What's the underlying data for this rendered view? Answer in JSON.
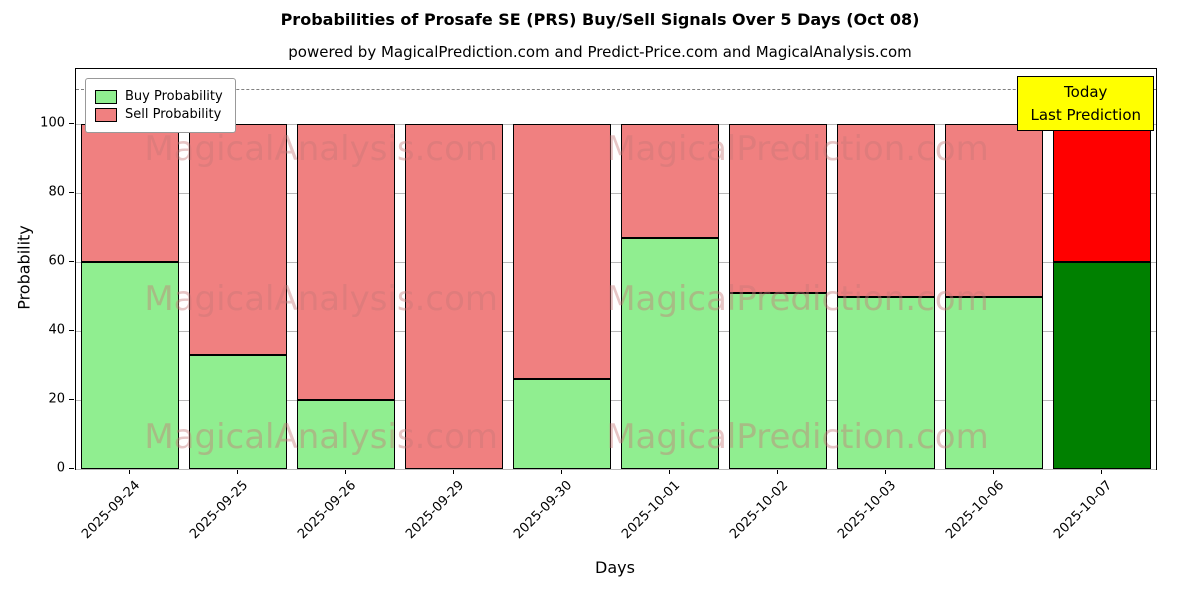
{
  "header": {
    "title": "Probabilities of Prosafe SE (PRS) Buy/Sell Signals Over 5 Days (Oct 08)",
    "subtitle": "powered by MagicalPrediction.com and Predict-Price.com and MagicalAnalysis.com"
  },
  "chart_data": {
    "type": "bar",
    "stacked": true,
    "title": "Probabilities of Prosafe SE (PRS) Buy/Sell Signals Over 5 Days (Oct 08)",
    "xlabel": "Days",
    "ylabel": "Probability",
    "categories": [
      "2025-09-24",
      "2025-09-25",
      "2025-09-26",
      "2025-09-29",
      "2025-09-30",
      "2025-10-01",
      "2025-10-02",
      "2025-10-03",
      "2025-10-06",
      "2025-10-07"
    ],
    "series": [
      {
        "name": "Buy Probability",
        "color": "#90EE90",
        "values": [
          60,
          33,
          20,
          0,
          26,
          67,
          51,
          50,
          50,
          60
        ]
      },
      {
        "name": "Sell Probability",
        "color": "#F08080",
        "values": [
          40,
          67,
          80,
          100,
          74,
          33,
          49,
          50,
          50,
          40
        ]
      }
    ],
    "final_bar_colors": {
      "buy": "#008000",
      "sell": "#FF0000"
    },
    "ylim": [
      0,
      116
    ],
    "yticks": [
      0,
      20,
      40,
      60,
      80,
      100
    ],
    "dashed_line_y": 110,
    "grid": true,
    "legend_position": "upper left",
    "bar_edge_color": "#000000"
  },
  "annotation": {
    "lines": [
      "Today",
      "Last Prediction"
    ],
    "bg_color": "#FFFF00"
  },
  "watermarks": {
    "left_text": "MagicalAnalysis.com",
    "right_text": "MagicalPrediction.com",
    "color": "#c87878"
  }
}
